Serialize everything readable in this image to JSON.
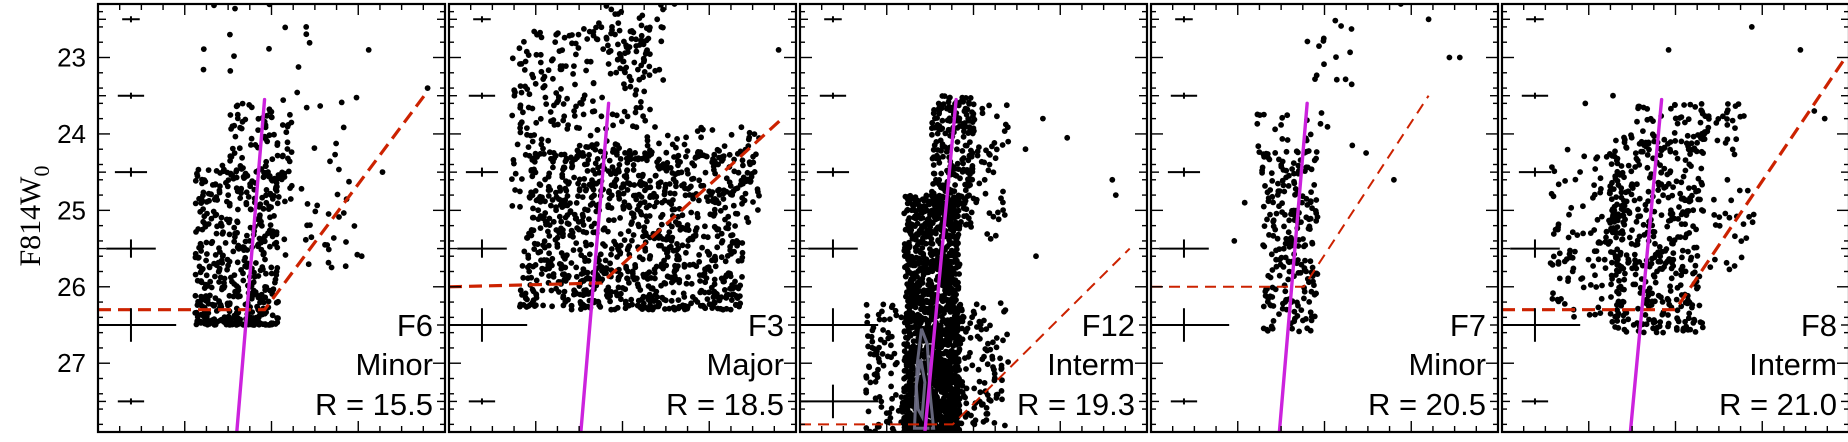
{
  "chart_data": {
    "type": "scatter",
    "ylabel": "F814W",
    "ylabel_subscript": "0",
    "ylim": [
      27.9,
      22.3
    ],
    "xlim": [
      0,
      100
    ],
    "yticks": [
      "23",
      "24",
      "25",
      "26",
      "27"
    ],
    "colors": {
      "points": "#000000",
      "track": "#cc22dd",
      "limit": "#cc2200",
      "contour": "#707088"
    },
    "panels": [
      {
        "field": "F6",
        "type_label": "Minor",
        "r_label": "R = 15.5",
        "track": [
          [
            40,
            27.9
          ],
          [
            48,
            23.55
          ]
        ],
        "limit": {
          "dash": "bold",
          "points": [
            [
              0,
              26.3
            ],
            [
              48,
              26.3
            ],
            [
              94,
              23.5
            ]
          ]
        },
        "errorbars": [
          [
            0.5,
            22.5,
            0.05,
            0.02
          ],
          [
            0.7,
            23.5,
            0.08,
            0.02
          ],
          [
            1.0,
            24.5,
            0.1,
            0.04
          ],
          [
            1.8,
            25.5,
            0.16,
            0.1
          ],
          [
            3.3,
            26.5,
            0.3,
            0.2
          ],
          [
            0.7,
            27.5,
            0.08,
            0.02
          ]
        ],
        "clusters": [
          {
            "n": 450,
            "x_range": [
              28,
              52
            ],
            "y_range": [
              24.4,
              26.5
            ],
            "y_bias": 1.5,
            "tilt": 0
          },
          {
            "n": 90,
            "x_range": [
              38,
              56
            ],
            "y_range": [
              23.6,
              24.8
            ],
            "y_bias": 1.0,
            "tilt": 0
          },
          {
            "n": 45,
            "x_range": [
              52,
              75
            ],
            "y_range": [
              23.4,
              25.8
            ],
            "y_bias": 1.0,
            "tilt": 0
          },
          {
            "n": 12,
            "x_range": [
              28,
              62
            ],
            "y_range": [
              22.3,
              23.5
            ],
            "y_bias": 1.0,
            "tilt": 0
          }
        ],
        "points": [
          [
            60,
            22.6
          ],
          [
            78,
            22.9
          ],
          [
            95,
            23.4
          ],
          [
            38,
            22.7
          ],
          [
            82,
            24.5
          ],
          [
            76,
            25.6
          ]
        ]
      },
      {
        "field": "F3",
        "type_label": "Major",
        "r_label": "R = 18.5",
        "track": [
          [
            38,
            27.9
          ],
          [
            46,
            23.6
          ]
        ],
        "limit": {
          "dash": "bold",
          "points": [
            [
              0,
              26.0
            ],
            [
              44,
              25.95
            ],
            [
              96,
              23.8
            ]
          ]
        },
        "errorbars": [
          [
            0.5,
            22.5,
            0.05,
            0.02
          ],
          [
            0.7,
            23.5,
            0.08,
            0.02
          ],
          [
            1.0,
            24.5,
            0.1,
            0.04
          ],
          [
            1.8,
            25.5,
            0.16,
            0.1
          ],
          [
            3.3,
            26.5,
            0.3,
            0.2
          ],
          [
            0.7,
            27.5,
            0.08,
            0.02
          ]
        ],
        "clusters": [
          {
            "n": 900,
            "x_range": [
              20,
              84
            ],
            "y_range": [
              24.2,
              26.3
            ],
            "y_bias": 1.3,
            "tilt": 0.5
          },
          {
            "n": 300,
            "x_range": [
              18,
              58
            ],
            "y_range": [
              22.6,
              25.0
            ],
            "y_bias": 1.0,
            "tilt": 0
          },
          {
            "n": 100,
            "x_range": [
              55,
              90
            ],
            "y_range": [
              23.9,
              25.0
            ],
            "y_bias": 1.0,
            "tilt": 0
          },
          {
            "n": 50,
            "x_range": [
              40,
              62
            ],
            "y_range": [
              22.3,
              23.3
            ],
            "y_bias": 1.0,
            "tilt": 0
          }
        ],
        "points": [
          [
            95,
            22.9
          ],
          [
            65,
            22.3
          ],
          [
            60,
            22.5
          ]
        ]
      },
      {
        "field": "F12",
        "type_label": "Interm",
        "r_label": "R = 19.3",
        "track": [
          [
            36,
            27.9
          ],
          [
            45,
            23.55
          ]
        ],
        "limit": {
          "dash": "thin",
          "points": [
            [
              0,
              27.8
            ],
            [
              44,
              27.8
            ],
            [
              95,
              25.5
            ]
          ]
        },
        "errorbars": [
          [
            0.5,
            22.5,
            0.05,
            0.02
          ],
          [
            0.7,
            23.5,
            0.08,
            0.02
          ],
          [
            1.0,
            24.5,
            0.1,
            0.04
          ],
          [
            1.8,
            25.5,
            0.16,
            0.1
          ],
          [
            3.3,
            26.5,
            0.3,
            0.2
          ],
          [
            3.3,
            27.5,
            0.3,
            0.2
          ]
        ],
        "clusters": [
          {
            "n": 1500,
            "x_range": [
              30,
              46
            ],
            "y_range": [
              24.8,
              27.9
            ],
            "y_bias": 1.6,
            "tilt": 0
          },
          {
            "n": 280,
            "x_range": [
              19,
              60
            ],
            "y_range": [
              26.2,
              27.9
            ],
            "y_bias": 1.0,
            "tilt": 0
          },
          {
            "n": 220,
            "x_range": [
              38,
              50
            ],
            "y_range": [
              23.5,
              25.2
            ],
            "y_bias": 1.0,
            "tilt": 0
          },
          {
            "n": 60,
            "x_range": [
              46,
              60
            ],
            "y_range": [
              23.6,
              25.4
            ],
            "y_bias": 1.0,
            "tilt": 0
          }
        ],
        "points": [
          [
            60,
            24.1
          ],
          [
            70,
            23.8
          ],
          [
            68,
            25.6
          ],
          [
            77,
            24.05
          ],
          [
            90,
            24.6
          ],
          [
            91,
            24.8
          ],
          [
            65,
            24.2
          ]
        ],
        "contours": [
          [
            [
              33,
              27.85
            ],
            [
              33.8,
              27.0
            ],
            [
              35,
              26.55
            ],
            [
              36.7,
              26.75
            ],
            [
              37.5,
              27.4
            ],
            [
              38.5,
              27.85
            ]
          ],
          [
            [
              33.5,
              27.3
            ],
            [
              34.8,
              26.95
            ],
            [
              36,
              27.25
            ],
            [
              35.2,
              27.7
            ],
            [
              34,
              27.6
            ]
          ]
        ]
      },
      {
        "field": "F7",
        "type_label": "Minor",
        "r_label": "R = 20.5",
        "track": [
          [
            37,
            27.9
          ],
          [
            45,
            23.6
          ]
        ],
        "limit": {
          "dash": "thin",
          "points": [
            [
              0,
              26.0
            ],
            [
              44,
              26.0
            ],
            [
              80,
              23.5
            ]
          ]
        },
        "errorbars": [
          [
            0.5,
            22.5,
            0.05,
            0.02
          ],
          [
            0.7,
            23.5,
            0.08,
            0.02
          ],
          [
            1.0,
            24.5,
            0.1,
            0.04
          ],
          [
            1.8,
            25.5,
            0.16,
            0.1
          ],
          [
            3.3,
            26.5,
            0.3,
            0.2
          ],
          [
            0.7,
            27.5,
            0.08,
            0.02
          ]
        ],
        "clusters": [
          {
            "n": 220,
            "x_range": [
              32,
              48
            ],
            "y_range": [
              24.2,
              26.6
            ],
            "y_bias": 1.0,
            "tilt": 0
          },
          {
            "n": 25,
            "x_range": [
              30,
              52
            ],
            "y_range": [
              23.7,
              24.4
            ],
            "y_bias": 1.0,
            "tilt": 0
          },
          {
            "n": 15,
            "x_range": [
              45,
              58
            ],
            "y_range": [
              22.5,
              23.5
            ],
            "y_bias": 1.0,
            "tilt": 0
          }
        ],
        "points": [
          [
            72,
            22.3
          ],
          [
            80,
            22.5
          ],
          [
            86,
            23.0
          ],
          [
            89,
            23.0
          ],
          [
            58,
            24.15
          ],
          [
            62,
            24.25
          ],
          [
            70,
            24.6
          ],
          [
            27,
            24.9
          ],
          [
            24,
            25.4
          ]
        ]
      },
      {
        "field": "F8",
        "type_label": "Interm",
        "r_label": "R = 21.0",
        "track": [
          [
            37,
            27.9
          ],
          [
            46,
            23.55
          ]
        ],
        "limit": {
          "dash": "bold",
          "points": [
            [
              0,
              26.3
            ],
            [
              50,
              26.3
            ],
            [
              99,
              23.0
            ]
          ]
        },
        "errorbars": [
          [
            0.5,
            22.5,
            0.05,
            0.02
          ],
          [
            0.7,
            23.5,
            0.08,
            0.02
          ],
          [
            1.0,
            24.5,
            0.1,
            0.04
          ],
          [
            1.8,
            25.5,
            0.16,
            0.1
          ],
          [
            3.3,
            26.5,
            0.3,
            0.2
          ],
          [
            0.7,
            27.5,
            0.08,
            0.02
          ]
        ],
        "clusters": [
          {
            "n": 400,
            "x_range": [
              31,
              58
            ],
            "y_range": [
              24.0,
              26.6
            ],
            "y_bias": 1.2,
            "tilt": 0
          },
          {
            "n": 130,
            "x_range": [
              14,
              36
            ],
            "y_range": [
              24.2,
              26.4
            ],
            "y_bias": 1.0,
            "tilt": 0
          },
          {
            "n": 80,
            "x_range": [
              38,
              70
            ],
            "y_range": [
              23.6,
              24.3
            ],
            "y_bias": 1.0,
            "tilt": 0
          },
          {
            "n": 25,
            "x_range": [
              60,
              74
            ],
            "y_range": [
              24.6,
              25.8
            ],
            "y_bias": 1.0,
            "tilt": 0
          }
        ],
        "points": [
          [
            72,
            22.6
          ],
          [
            86,
            22.9
          ],
          [
            90,
            23.7
          ],
          [
            93,
            23.8
          ],
          [
            48,
            22.9
          ],
          [
            32,
            23.5
          ],
          [
            24,
            23.6
          ]
        ]
      }
    ]
  }
}
